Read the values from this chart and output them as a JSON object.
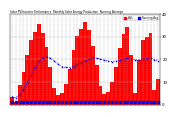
{
  "title": "Solar PV/Inverter Performance  Monthly Solar Energy Production  Running Average",
  "bar_values": [
    3.5,
    1.2,
    8.5,
    14.2,
    22.1,
    28.5,
    32.0,
    35.8,
    31.5,
    25.3,
    16.8,
    7.5,
    4.1,
    5.0,
    9.2,
    15.8,
    24.0,
    30.2,
    33.5,
    36.5,
    32.8,
    26.0,
    17.5,
    8.2,
    4.5,
    5.5,
    10.0,
    16.5,
    25.0,
    31.0,
    34.5,
    22.0,
    5.2,
    19.5,
    28.5,
    29.8,
    31.5,
    6.5,
    11.5
  ],
  "running_avg": [
    3.5,
    3.0,
    4.4,
    6.6,
    9.9,
    13.0,
    16.2,
    19.1,
    20.7,
    21.0,
    20.5,
    19.3,
    17.9,
    16.8,
    16.4,
    16.3,
    16.8,
    17.6,
    18.4,
    19.3,
    20.0,
    20.5,
    20.5,
    20.1,
    19.6,
    19.2,
    19.0,
    19.1,
    19.5,
    20.0,
    20.5,
    20.3,
    19.7,
    19.7,
    20.0,
    20.3,
    20.6,
    19.9,
    19.4
  ],
  "bar_color": "#FF0000",
  "avg_color": "#0000EE",
  "bg_color": "#FFFFFF",
  "grid_color": "#AAAAAA",
  "ylim": [
    0,
    40
  ],
  "n_bars": 39,
  "legend_kw_color": "#FF0000",
  "legend_avg_color": "#0000EE"
}
